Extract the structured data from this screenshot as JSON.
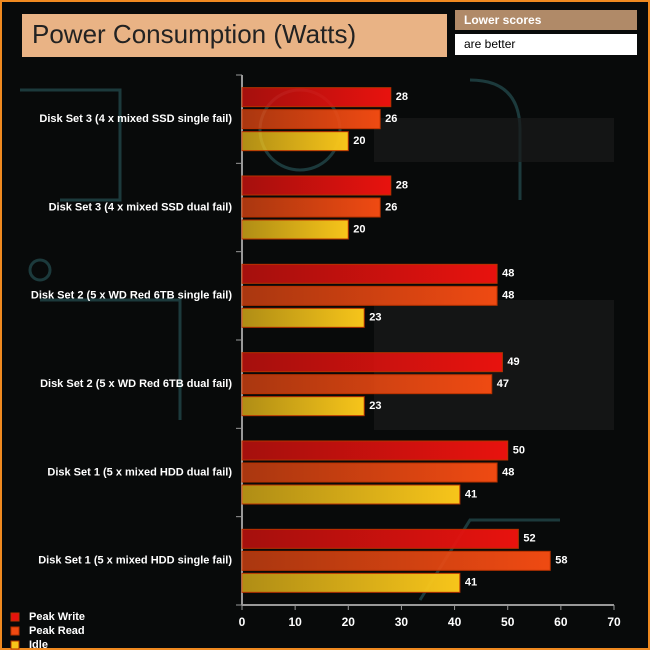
{
  "chart_data": {
    "type": "hbar",
    "title": "Power Consumption (Watts)",
    "note": [
      "Lower scores",
      "are better"
    ],
    "categories": [
      "Disk Set 3 (4 x mixed SSD single fail)",
      "Disk Set 3 (4 x mixed SSD dual fail)",
      "Disk Set 2 (5 x WD Red 6TB single fail)",
      "Disk Set 2 (5 x WD Red 6TB dual fail)",
      "Disk Set 1 (5 x mixed HDD dual fail)",
      "Disk Set 1 (5 x mixed HDD single fail)"
    ],
    "series": [
      {
        "name": "Peak Write",
        "color": "#e8120e",
        "values": [
          28,
          28,
          48,
          49,
          50,
          52
        ]
      },
      {
        "name": "Peak Read",
        "color": "#ef4a12",
        "values": [
          26,
          26,
          48,
          47,
          48,
          58
        ]
      },
      {
        "name": "Idle",
        "color": "#f7c51a",
        "values": [
          20,
          20,
          23,
          23,
          41,
          41
        ]
      }
    ],
    "xlim": [
      0,
      70
    ],
    "xticks": [
      0,
      10,
      20,
      30,
      40,
      50,
      60,
      70
    ]
  }
}
